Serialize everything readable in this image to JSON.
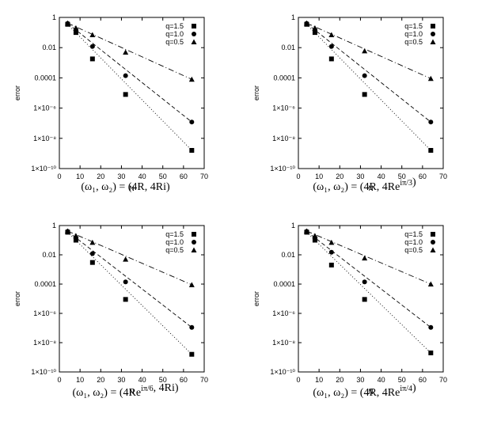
{
  "chart_data": [
    {
      "type": "scatter",
      "caption": "(ω₁, ω₂) = (4R, 4Ri)",
      "xlabel": "N",
      "ylabel": "error",
      "xlim": [
        0,
        70
      ],
      "ylim": [
        1e-10,
        1
      ],
      "yscale": "log",
      "x_ticks": [
        "0",
        "10",
        "20",
        "30",
        "40",
        "50",
        "60",
        "70"
      ],
      "y_ticks": [
        "1",
        "0.01",
        "0.0001",
        "1×10⁻⁶",
        "1×10⁻⁸",
        "1×10⁻¹⁰"
      ],
      "legend_position": "top-right",
      "series": [
        {
          "name": "q=1.5",
          "marker": "square",
          "line": "dotted",
          "x": [
            4,
            8,
            16,
            32,
            64
          ],
          "y": [
            0.35,
            0.1,
            0.0018,
            8e-06,
            1.6e-09
          ]
        },
        {
          "name": "q=1.0",
          "marker": "circle",
          "line": "dashed",
          "x": [
            4,
            8,
            16,
            32,
            64
          ],
          "y": [
            0.4,
            0.15,
            0.012,
            0.00014,
            1.2e-07
          ]
        },
        {
          "name": "q=0.5",
          "marker": "triangle",
          "line": "dashed-dotted",
          "x": [
            4,
            8,
            16,
            32,
            64
          ],
          "y": [
            0.42,
            0.2,
            0.07,
            0.005,
            8e-05
          ]
        }
      ]
    },
    {
      "type": "scatter",
      "caption": "(ω₁, ω₂) = (4R, 4Re^{iπ/3})",
      "xlabel": "N",
      "ylabel": "error",
      "xlim": [
        0,
        70
      ],
      "ylim": [
        1e-10,
        1
      ],
      "yscale": "log",
      "x_ticks": [
        "0",
        "10",
        "20",
        "30",
        "40",
        "50",
        "60",
        "70"
      ],
      "y_ticks": [
        "1",
        "0.01",
        "0.0001",
        "1×10⁻⁶",
        "1×10⁻⁸",
        "1×10⁻¹⁰"
      ],
      "legend_position": "top-right",
      "series": [
        {
          "name": "q=1.5",
          "marker": "square",
          "line": "dotted",
          "x": [
            4,
            8,
            16,
            32,
            64
          ],
          "y": [
            0.35,
            0.1,
            0.0018,
            8e-06,
            1.6e-09
          ]
        },
        {
          "name": "q=1.0",
          "marker": "circle",
          "line": "dashed",
          "x": [
            4,
            8,
            16,
            32,
            64
          ],
          "y": [
            0.4,
            0.15,
            0.012,
            0.00014,
            1.2e-07
          ]
        },
        {
          "name": "q=0.5",
          "marker": "triangle",
          "line": "dashed-dotted",
          "x": [
            4,
            8,
            16,
            32,
            64
          ],
          "y": [
            0.42,
            0.2,
            0.07,
            0.006,
            9e-05
          ]
        }
      ]
    },
    {
      "type": "scatter",
      "caption": "(ω₁, ω₂) = (4Re^{iπ/6}, 4Ri)",
      "xlabel": "N",
      "ylabel": "error",
      "xlim": [
        0,
        70
      ],
      "ylim": [
        1e-10,
        1
      ],
      "yscale": "log",
      "x_ticks": [
        "0",
        "10",
        "20",
        "30",
        "40",
        "50",
        "60",
        "70"
      ],
      "y_ticks": [
        "1",
        "0.01",
        "0.0001",
        "1×10⁻⁶",
        "1×10⁻⁸",
        "1×10⁻¹⁰"
      ],
      "legend_position": "top-right",
      "series": [
        {
          "name": "q=1.5",
          "marker": "square",
          "line": "dotted",
          "x": [
            4,
            8,
            16,
            32,
            64
          ],
          "y": [
            0.35,
            0.1,
            0.003,
            9e-06,
            1.6e-09
          ]
        },
        {
          "name": "q=1.0",
          "marker": "circle",
          "line": "dashed",
          "x": [
            4,
            8,
            16,
            32,
            64
          ],
          "y": [
            0.4,
            0.15,
            0.012,
            0.00014,
            1.1e-07
          ]
        },
        {
          "name": "q=0.5",
          "marker": "triangle",
          "line": "dashed-dotted",
          "x": [
            4,
            8,
            16,
            32,
            64
          ],
          "y": [
            0.42,
            0.2,
            0.07,
            0.005,
            9e-05
          ]
        }
      ]
    },
    {
      "type": "scatter",
      "caption": "(ω₁, ω₂) = (4R, 4Re^{iπ/4})",
      "xlabel": "N",
      "ylabel": "error",
      "xlim": [
        0,
        70
      ],
      "ylim": [
        1e-10,
        1
      ],
      "yscale": "log",
      "x_ticks": [
        "0",
        "10",
        "20",
        "30",
        "40",
        "50",
        "60",
        "70"
      ],
      "y_ticks": [
        "1",
        "0.01",
        "0.0001",
        "1×10⁻⁶",
        "1×10⁻⁸",
        "1×10⁻¹⁰"
      ],
      "legend_position": "top-right",
      "series": [
        {
          "name": "q=1.5",
          "marker": "square",
          "line": "dotted",
          "x": [
            4,
            8,
            16,
            32,
            64
          ],
          "y": [
            0.35,
            0.1,
            0.002,
            9e-06,
            2e-09
          ]
        },
        {
          "name": "q=1.0",
          "marker": "circle",
          "line": "dashed",
          "x": [
            4,
            8,
            16,
            32,
            64
          ],
          "y": [
            0.4,
            0.15,
            0.015,
            0.00014,
            1.1e-07
          ]
        },
        {
          "name": "q=0.5",
          "marker": "triangle",
          "line": "dashed-dotted",
          "x": [
            4,
            8,
            16,
            32,
            64
          ],
          "y": [
            0.42,
            0.2,
            0.07,
            0.006,
            0.0001
          ]
        }
      ]
    }
  ]
}
